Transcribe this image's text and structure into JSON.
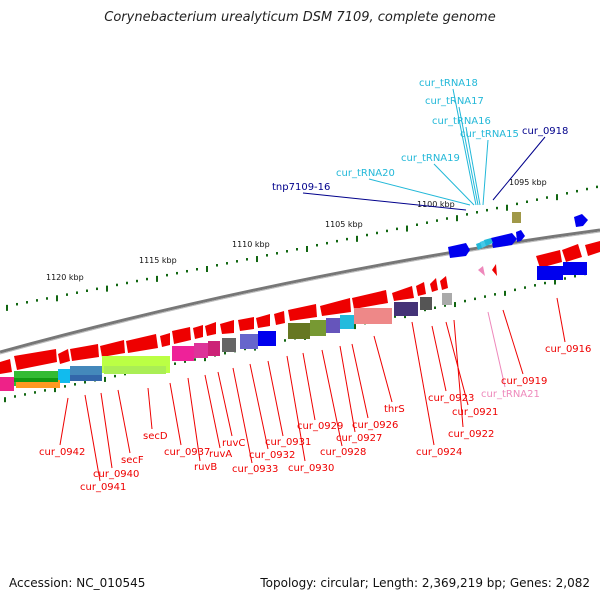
{
  "title": "Corynebacterium urealyticum DSM 7109, complete genome",
  "footer": {
    "accession": "Accession: NC_010545",
    "topology": "Topology: circular; Length: 2,369,219 bp; Genes: 2,082"
  },
  "colors": {
    "forward_gene": "#0000ee",
    "reverse_gene": "#ee0000",
    "trna_forward": "#22b8d8",
    "trna_reverse": "#ee88bb",
    "backbone": "#888888",
    "ticks": "#116611"
  },
  "kbp_labels": [
    "1095 kbp",
    "1100 kbp",
    "1105 kbp",
    "1110 kbp",
    "1115 kbp",
    "1120 kbp"
  ],
  "labels": {
    "cur_tRNA18": "cur_tRNA18",
    "cur_tRNA17": "cur_tRNA17",
    "cur_tRNA16": "cur_tRNA16",
    "cur_tRNA15": "cur_tRNA15",
    "cur_tRNA19": "cur_tRNA19",
    "cur_tRNA20": "cur_tRNA20",
    "cur_0918": "cur_0918",
    "tnp7109_16": "tnp7109-16",
    "cur_0916": "cur_0916",
    "cur_0919": "cur_0919",
    "cur_tRNA21": "cur_tRNA21",
    "cur_0921": "cur_0921",
    "cur_0922": "cur_0922",
    "cur_0923": "cur_0923",
    "cur_0924": "cur_0924",
    "thrS": "thrS",
    "cur_0926": "cur_0926",
    "cur_0927": "cur_0927",
    "cur_0928": "cur_0928",
    "cur_0929": "cur_0929",
    "cur_0930": "cur_0930",
    "cur_0931": "cur_0931",
    "cur_0932": "cur_0932",
    "cur_0933": "cur_0933",
    "ruvA": "ruvA",
    "ruvB": "ruvB",
    "ruvC": "ruvC",
    "cur_0937": "cur_0937",
    "secD": "secD",
    "secF": "secF",
    "cur_0940": "cur_0940",
    "cur_0941": "cur_0941",
    "cur_0942": "cur_0942"
  }
}
